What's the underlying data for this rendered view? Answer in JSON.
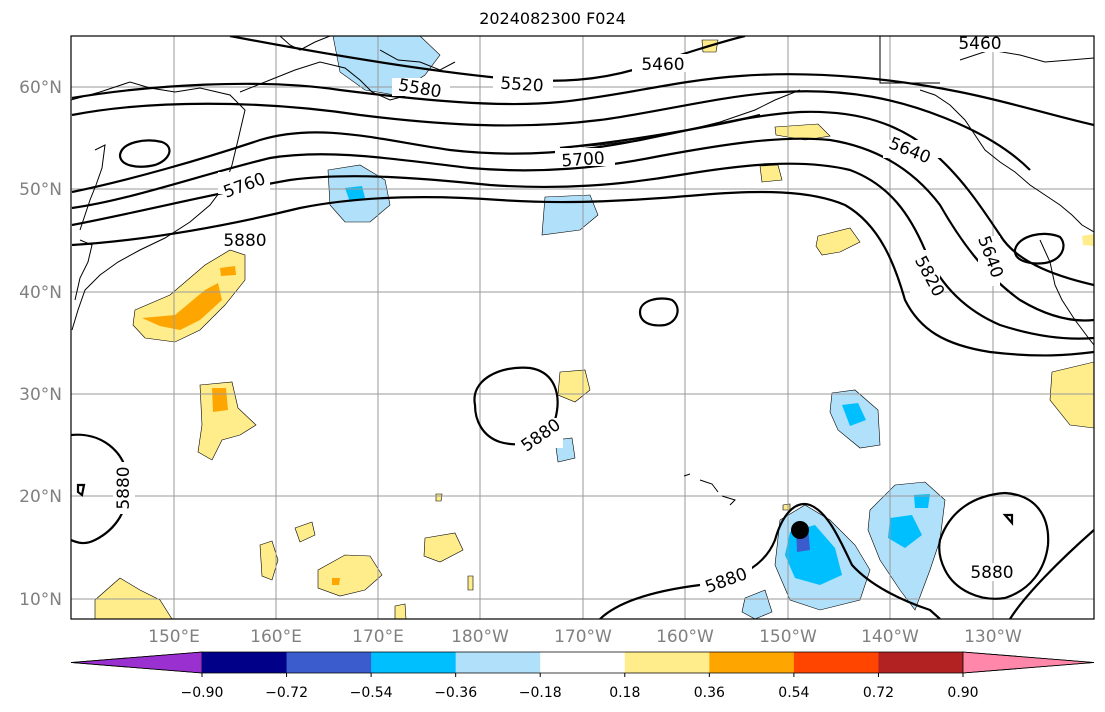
{
  "title": "2024082300 F024",
  "lat_labels": [
    "60°N",
    "50°N",
    "40°N",
    "30°N",
    "20°N",
    "10°N"
  ],
  "lon_labels": [
    "150°E",
    "160°E",
    "170°E",
    "180°W",
    "170°W",
    "160°W",
    "150°W",
    "140°W",
    "130°W"
  ],
  "contour_labels": [
    "5460",
    "5460",
    "5520",
    "5580",
    "5640",
    "5640",
    "5700",
    "5760",
    "5820",
    "5880",
    "5880",
    "5880",
    "5880",
    "5880"
  ],
  "colorbar": {
    "ticks": [
      "−0.90",
      "−0.72",
      "−0.54",
      "−0.36",
      "−0.18",
      "0.18",
      "0.36",
      "0.54",
      "0.72",
      "0.90"
    ],
    "colors": [
      "#9b30d0",
      "#000088",
      "#3a5ccc",
      "#00bfff",
      "#b0e0fa",
      "#ffffff",
      "#ffec8b",
      "#ffa500",
      "#ff4500",
      "#b22222",
      "#ff88aa"
    ]
  }
}
